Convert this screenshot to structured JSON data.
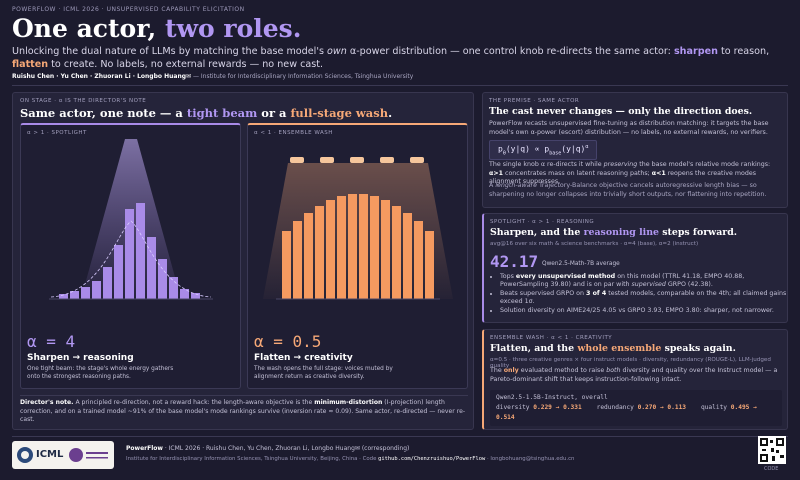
{
  "header": {
    "kicker": "POWERFLOW · ICML 2026 · UNSUPERVISED CAPABILITY ELICITATION",
    "title": [
      "One actor, ",
      "two roles."
    ],
    "subtitle": [
      "Unlocking the dual nature of LLMs by matching the base model's ",
      "own",
      " α-power distribution — one control knob re-directs the same actor: ",
      "sharpen",
      " to reason, ",
      "flatten",
      " to create. No labels, no external rewards — no new cast."
    ],
    "authors": "Ruishu Chen · Yu Chen · Zhuoran Li · Longbo Huang✉",
    "affiliation": "— Institute for Interdisciplinary Information Sciences, Tsinghua University"
  },
  "on_stage": {
    "label": "ON STAGE · α IS THE DIRECTOR'S NOTE",
    "heading": [
      "Same actor, one note — a ",
      "tight beam",
      " or a ",
      "full-stage wash",
      "."
    ],
    "cards": [
      {
        "tag": "α > 1 · SPOTLIGHT",
        "alpha": "α = 4",
        "title": "Sharpen → reasoning",
        "desc": "One tight beam: the stage's whole energy gathers onto the strongest reasoning paths."
      },
      {
        "tag": "α < 1 · ENSEMBLE WASH",
        "alpha": "α = 0.5",
        "title": "Flatten → creativity",
        "desc": "The wash opens the full stage: voices muted by alignment return as creative diversity."
      }
    ],
    "note": [
      "Director's note.",
      " A principled re-direction, not a reward hack: the length-aware objective is the ",
      "minimum-distortion",
      " (I-projection) length correction, and on a trained model ~91% of the base model's mode rankings survive (inversion rate ≈ 0.09). Same actor, re-directed — never re-cast."
    ]
  },
  "premise": {
    "label": "THE PREMISE · SAME ACTOR",
    "heading": "The cast never changes — only the direction does.",
    "p1": "PowerFlow recasts unsupervised fine-tuning as distribution matching: it targets the base model's own α-power (escort) distribution — no labels, no external rewards, no verifiers.",
    "formula": [
      "p",
      "θ",
      "(y|q) ∝ p",
      "base",
      "(y|q)",
      "α"
    ],
    "p2": [
      "The single knob α re-directs it while ",
      "preserving",
      " the base model's relative mode rankings: ",
      "α>1",
      " concentrates mass on latent reasoning paths; ",
      "α<1",
      " reopens the creative modes alignment suppresses."
    ],
    "p3": [
      "A ",
      "length-aware",
      " Trajectory-Balance objective cancels autoregressive length bias — so sharpening no longer collapses into trivially short outputs, nor flattening into repetition."
    ]
  },
  "reasoning": {
    "label": "SPOTLIGHT · α > 1 · REASONING",
    "heading": [
      "Sharpen, and the ",
      "reasoning line",
      " steps forward."
    ],
    "sub": "avg@16 over six math & science benchmarks · α=4 (base), α=2 (instruct)",
    "big": "42.17",
    "big_caption": "Qwen2.5-Math-7B average",
    "bullets": [
      [
        "Tops ",
        "every unsupervised method",
        " on this model (TTRL 41.18, EMPO 40.88, PowerSampling 39.80) and is on par with ",
        "supervised",
        " GRPO (42.38)."
      ],
      [
        "Beats supervised GRPO on ",
        "3 of 4",
        " tested models, comparable on the 4th; all claimed gains exceed 1σ."
      ],
      [
        "Solution diversity on AIME24/25 4.05 vs GRPO 3.93, EMPO 3.80: sharper, not narrower."
      ]
    ]
  },
  "creativity": {
    "label": "ENSEMBLE WASH · α < 1 · CREATIVITY",
    "heading": [
      "Flatten, and the ",
      "whole ensemble",
      " speaks again."
    ],
    "sub": "α=0.5 · three creative genres × four instruct models · diversity, redundancy (ROUGE-L), LLM-judged quality",
    "p": [
      "The ",
      "only",
      " evaluated method to raise ",
      "both",
      " diversity and quality over the Instruct model — a Pareto-dominant shift that keeps instruction-following intact."
    ],
    "code_title": "Qwen2.5-1.5B-Instruct, overall",
    "metrics": [
      {
        "name": "diversity",
        "value": "0.229 → 0.331"
      },
      {
        "name": "redundancy",
        "value": "0.270 → 0.113"
      },
      {
        "name": "quality",
        "value": "0.495 → 0.514"
      }
    ]
  },
  "footer": {
    "logo": "ICML",
    "line1": [
      "PowerFlow",
      " · ICML 2026 · Ruishu Chen, Yu Chen, Zhuoran Li, Longbo Huang✉ (corresponding)"
    ],
    "line2": [
      "Institute for Interdisciplinary Information Sciences, Tsinghua University, Beijing, China · Code ",
      "github.com/Chenzruishuo/PowerFlow",
      " · longbohuang@tsinghua.edu.cn"
    ],
    "qr_label": "CODE"
  }
}
